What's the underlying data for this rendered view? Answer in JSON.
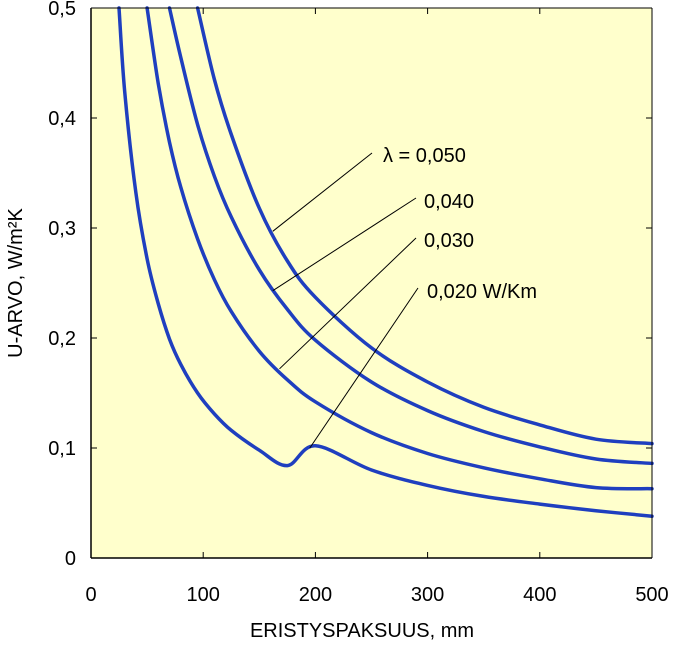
{
  "chart_data": {
    "type": "line",
    "title": "",
    "xlabel": "ERISTYSPAKSUUS, mm",
    "ylabel": "U-ARVO, W/m²K",
    "xlim": [
      0,
      500
    ],
    "ylim": [
      0,
      0.5
    ],
    "xticks": [
      0,
      100,
      200,
      300,
      400,
      500
    ],
    "xtick_labels": [
      "0",
      "100",
      "200",
      "300",
      "400",
      "500"
    ],
    "yticks": [
      0,
      0.1,
      0.2,
      0.3,
      0.4,
      0.5
    ],
    "ytick_labels": [
      "0",
      "0,1",
      "0,2",
      "0,3",
      "0,4",
      "0,5"
    ],
    "grid": false,
    "plot_background": "#ffffcc",
    "line_color": "#1f3fbf",
    "x": [
      25,
      30,
      40,
      50,
      60,
      70,
      80,
      95,
      110,
      125,
      150,
      175,
      200,
      250,
      300,
      350,
      400,
      450,
      500
    ],
    "series": [
      {
        "name": "λ = 0,050",
        "values": [
          null,
          null,
          null,
          null,
          null,
          null,
          null,
          0.5,
          0.435,
          0.385,
          0.318,
          0.27,
          0.237,
          0.191,
          0.16,
          0.137,
          0.121,
          0.108,
          0.104
        ]
      },
      {
        "name": "0,040",
        "values": [
          null,
          null,
          null,
          null,
          null,
          0.5,
          0.455,
          0.394,
          0.347,
          0.31,
          0.262,
          0.226,
          0.198,
          0.16,
          0.134,
          0.115,
          0.101,
          0.09,
          0.086
        ]
      },
      {
        "name": "0,030",
        "values": [
          null,
          null,
          null,
          0.5,
          0.431,
          0.378,
          0.337,
          0.29,
          0.253,
          0.224,
          0.188,
          0.162,
          0.142,
          0.114,
          0.095,
          0.082,
          0.072,
          0.064,
          0.063
        ]
      },
      {
        "name": "0,020 W/Km",
        "values": [
          0.5,
          0.424,
          0.332,
          0.272,
          0.231,
          0.199,
          0.176,
          0.15,
          0.131,
          0.116,
          0.098,
          0.084,
          0.102,
          0.08,
          0.066,
          0.056,
          0.049,
          0.043,
          0.038
        ]
      }
    ],
    "annotations": [
      {
        "text": "λ = 0,050",
        "series": 0,
        "point": [
          162,
          0.297
        ]
      },
      {
        "text": "0,040",
        "series": 1,
        "point": [
          162,
          0.243
        ]
      },
      {
        "text": "0,030",
        "series": 2,
        "point": [
          168,
          0.172
        ]
      },
      {
        "text": "0,020 W/Km",
        "series": 3,
        "point": [
          195,
          0.1
        ]
      }
    ]
  }
}
